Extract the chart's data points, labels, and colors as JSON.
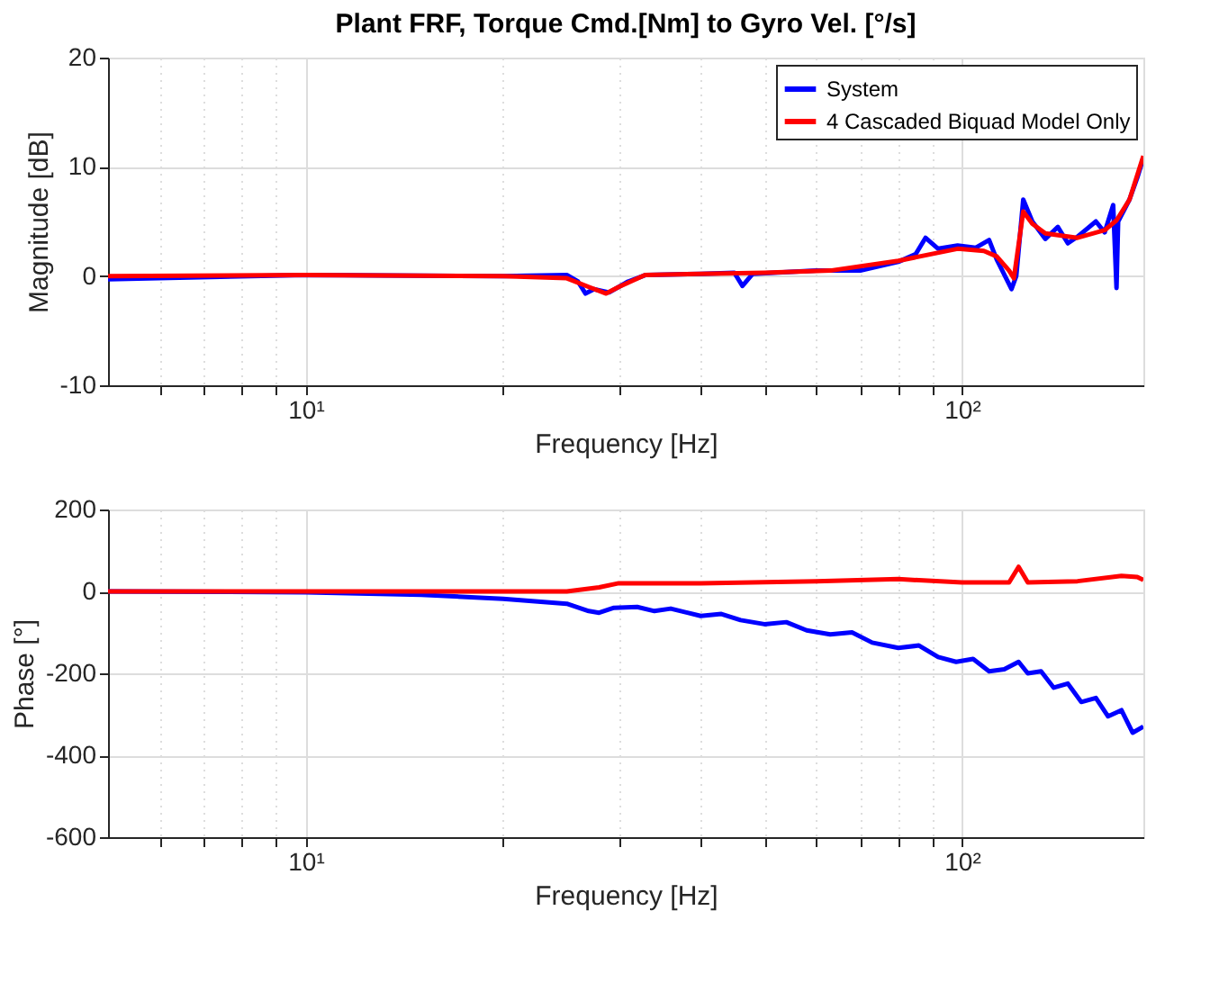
{
  "chart_data": [
    {
      "type": "line",
      "title": "Plant FRF, Torque Cmd.[Nm] to Gyro Vel. [°/s]",
      "xlabel": "Frequency [Hz]",
      "ylabel": "Magnitude [dB]",
      "log": "x",
      "grid": true,
      "legend": "top right",
      "xlim": [
        5,
        189
      ],
      "xticks": [
        {
          "value": 6,
          "label": null
        },
        {
          "value": 7,
          "label": null
        },
        {
          "value": 8,
          "label": null
        },
        {
          "value": 9,
          "label": null
        },
        {
          "value": 10,
          "label": "10¹"
        },
        {
          "value": 20,
          "label": null
        },
        {
          "value": 30,
          "label": null
        },
        {
          "value": 40,
          "label": null
        },
        {
          "value": 50,
          "label": null
        },
        {
          "value": 60,
          "label": null
        },
        {
          "value": 70,
          "label": null
        },
        {
          "value": 80,
          "label": null
        },
        {
          "value": 90,
          "label": null
        },
        {
          "value": 100,
          "label": "10²"
        }
      ],
      "ylim": [
        -10,
        20
      ],
      "yticks": [
        -10,
        0,
        10,
        20
      ],
      "series": [
        {
          "name": "System",
          "color": "#0000ff",
          "x": [
            5,
            10,
            20,
            25,
            26,
            26.7,
            27.5,
            29,
            31,
            33,
            40,
            45,
            46.3,
            48,
            60,
            70,
            80,
            85,
            88,
            92,
            98.5,
            105,
            110,
            113,
            119,
            121,
            124,
            128,
            134,
            140,
            145,
            150,
            160,
            165,
            170,
            172,
            173,
            180,
            185,
            189
          ],
          "values": [
            -0.3,
            0.1,
            0,
            0.1,
            -0.5,
            -1.6,
            -1.2,
            -1.5,
            -0.5,
            0.1,
            0.2,
            0.3,
            -0.9,
            0.2,
            0.5,
            0.5,
            1.3,
            2.0,
            3.5,
            2.5,
            2.8,
            2.6,
            3.3,
            1.5,
            -1.2,
            0,
            7.0,
            5,
            3.4,
            4.5,
            3.0,
            3.6,
            5,
            4,
            6.5,
            -1.1,
            5,
            7,
            9,
            10.8
          ]
        },
        {
          "name": "4 Cascaded Biquad Model Only",
          "color": "#ff0000",
          "x": [
            5,
            10,
            20,
            25,
            27,
            28.7,
            30,
            32.9,
            50,
            63,
            80,
            98.5,
            108,
            113,
            118,
            120,
            124,
            128,
            134,
            150,
            165,
            172,
            180,
            189
          ],
          "values": [
            0,
            0.1,
            0,
            -0.2,
            -1,
            -1.6,
            -1,
            0.1,
            0.3,
            0.5,
            1.4,
            2.5,
            2.3,
            1.8,
            0.5,
            -0.2,
            5.9,
            4.8,
            3.9,
            3.5,
            4.2,
            5.1,
            7,
            11
          ]
        }
      ]
    },
    {
      "type": "line",
      "xlabel": "Frequency [Hz]",
      "ylabel": "Phase [°]",
      "log": "x",
      "grid": true,
      "xlim": [
        5,
        189
      ],
      "xticks": [
        {
          "value": 6,
          "label": null
        },
        {
          "value": 7,
          "label": null
        },
        {
          "value": 8,
          "label": null
        },
        {
          "value": 9,
          "label": null
        },
        {
          "value": 10,
          "label": "10¹"
        },
        {
          "value": 20,
          "label": null
        },
        {
          "value": 30,
          "label": null
        },
        {
          "value": 40,
          "label": null
        },
        {
          "value": 50,
          "label": null
        },
        {
          "value": 60,
          "label": null
        },
        {
          "value": 70,
          "label": null
        },
        {
          "value": 80,
          "label": null
        },
        {
          "value": 90,
          "label": null
        },
        {
          "value": 100,
          "label": "10²"
        }
      ],
      "ylim": [
        -600,
        200
      ],
      "yticks": [
        -600,
        -400,
        -200,
        0,
        200
      ],
      "series": [
        {
          "color": "#0000ff",
          "x": [
            5,
            10,
            15,
            20,
            25,
            27,
            28,
            29.5,
            32,
            34,
            36,
            40,
            43,
            46,
            50,
            54,
            58,
            63,
            68,
            73,
            80,
            86,
            92,
            98,
            104,
            110,
            116,
            122,
            126,
            132,
            138,
            145,
            152,
            160,
            167,
            175,
            182,
            189
          ],
          "values": [
            0,
            -2,
            -8,
            -18,
            -30,
            -48,
            -52,
            -40,
            -38,
            -48,
            -42,
            -60,
            -55,
            -70,
            -80,
            -75,
            -95,
            -105,
            -100,
            -125,
            -138,
            -132,
            -160,
            -172,
            -165,
            -195,
            -190,
            -172,
            -200,
            -195,
            -235,
            -225,
            -270,
            -260,
            -305,
            -290,
            -345,
            -330
          ]
        },
        {
          "color": "#ff0000",
          "x": [
            5,
            25,
            28,
            30,
            40,
            60,
            80,
            100,
            118,
            122,
            126,
            150,
            175,
            185,
            189
          ],
          "values": [
            0,
            0,
            10,
            20,
            20,
            25,
            30,
            22,
            22,
            60,
            22,
            25,
            38,
            35,
            28
          ]
        }
      ]
    }
  ]
}
